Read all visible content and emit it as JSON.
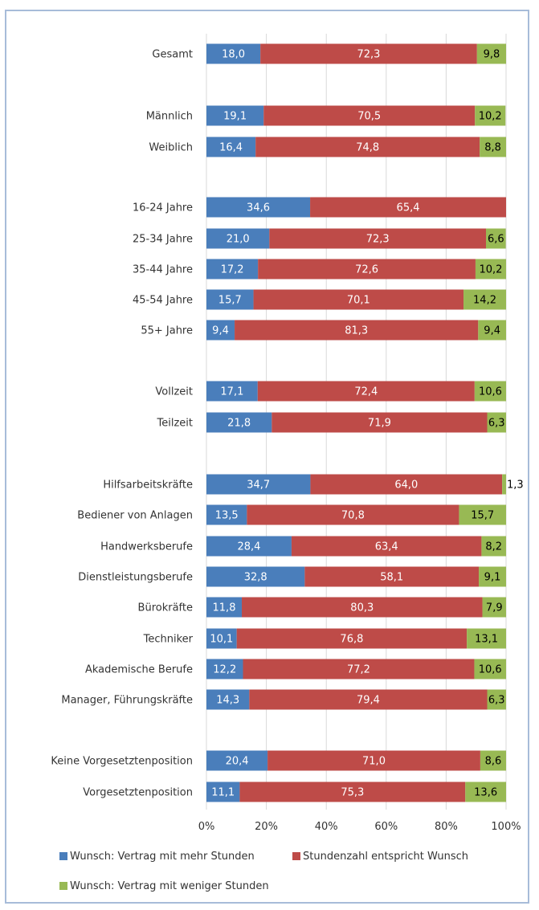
{
  "chart_data": {
    "type": "bar",
    "orientation": "horizontal",
    "stacked": true,
    "xlim": [
      0,
      100
    ],
    "x_ticks": [
      "0%",
      "20%",
      "40%",
      "60%",
      "80%",
      "100%"
    ],
    "grid": true,
    "legend_position": "bottom",
    "categories": [
      "Gesamt",
      "Männlich",
      "Weiblich",
      "16-24 Jahre",
      "25-34 Jahre",
      "35-44 Jahre",
      "45-54 Jahre",
      "55+ Jahre",
      "Vollzeit",
      "Teilzeit",
      "Hilfsarbeitskräfte",
      "Bediener von Anlagen",
      "Handwerksberufe",
      "Dienstleistungsberufe",
      "Bürokräfte",
      "Techniker",
      "Akademische Berufe",
      "Manager, Führungskräfte",
      "Keine Vorgesetztenposition",
      "Vorgesetztenposition"
    ],
    "series": [
      {
        "name": "Wunsch: Vertrag mit mehr Stunden",
        "color": "#4a7ebb",
        "values": [
          18.0,
          19.1,
          16.4,
          34.6,
          21.0,
          17.2,
          15.7,
          9.4,
          17.1,
          21.8,
          34.7,
          13.5,
          28.4,
          32.8,
          11.8,
          10.1,
          12.2,
          14.3,
          20.4,
          11.1
        ],
        "labels": [
          "18,0",
          "19,1",
          "16,4",
          "34,6",
          "21,0",
          "17,2",
          "15,7",
          "9,4",
          "17,1",
          "21,8",
          "34,7",
          "13,5",
          "28,4",
          "32,8",
          "11,8",
          "10,1",
          "12,2",
          "14,3",
          "20,4",
          "11,1"
        ]
      },
      {
        "name": "Stundenzahl entspricht Wunsch",
        "color": "#be4b48",
        "values": [
          72.3,
          70.5,
          74.8,
          65.4,
          72.3,
          72.6,
          70.1,
          81.3,
          72.4,
          71.9,
          64.0,
          70.8,
          63.4,
          58.1,
          80.3,
          76.8,
          77.2,
          79.4,
          71.0,
          75.3
        ],
        "labels": [
          "72,3",
          "70,5",
          "74,8",
          "65,4",
          "72,3",
          "72,6",
          "70,1",
          "81,3",
          "72,4",
          "71,9",
          "64,0",
          "70,8",
          "63,4",
          "58,1",
          "80,3",
          "76,8",
          "77,2",
          "79,4",
          "71,0",
          "75,3"
        ]
      },
      {
        "name": "Wunsch: Vertrag mit weniger Stunden",
        "color": "#98b954",
        "values": [
          9.8,
          10.2,
          8.8,
          0,
          6.6,
          10.2,
          14.2,
          9.4,
          10.6,
          6.3,
          1.3,
          15.7,
          8.2,
          9.1,
          7.9,
          13.1,
          10.6,
          6.3,
          8.6,
          13.6
        ],
        "labels": [
          "9,8",
          "10,2",
          "8,8",
          "",
          "6,6",
          "10,2",
          "14,2",
          "9,4",
          "10,6",
          "6,3",
          "1,3",
          "15,7",
          "8,2",
          "9,1",
          "7,9",
          "13,1",
          "10,6",
          "6,3",
          "8,6",
          "13,6"
        ]
      }
    ]
  }
}
